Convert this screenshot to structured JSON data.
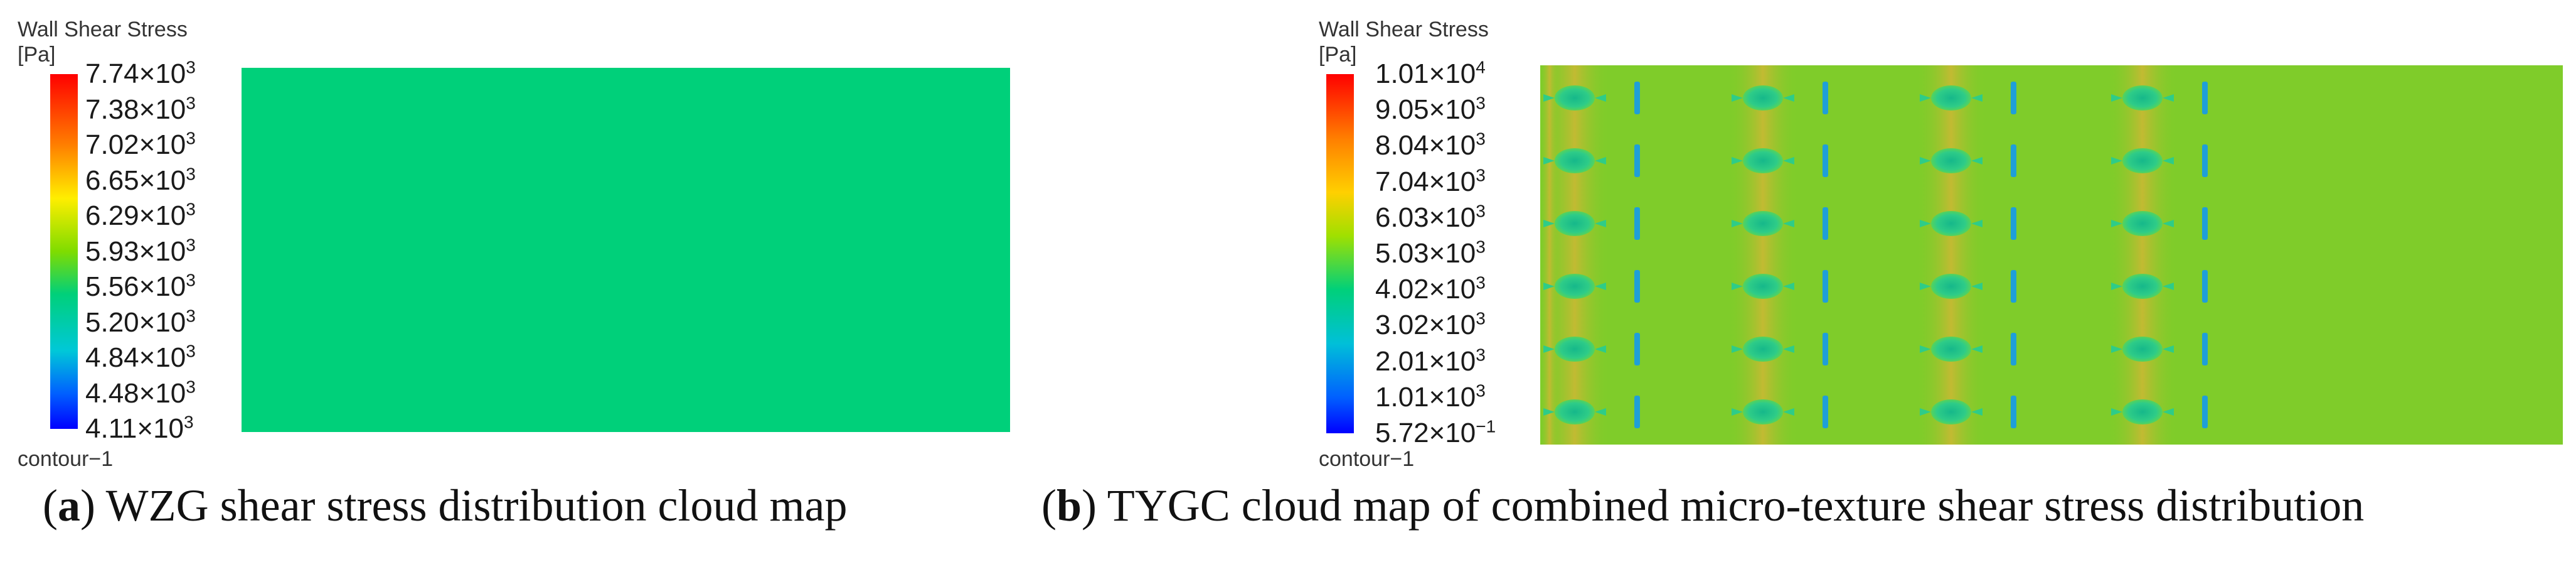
{
  "panel_a": {
    "legend_title": "Wall Shear Stress",
    "legend_unit": "[Pa]",
    "ticks": [
      {
        "mant": "7.74",
        "exp": "3"
      },
      {
        "mant": "7.38",
        "exp": "3"
      },
      {
        "mant": "7.02",
        "exp": "3"
      },
      {
        "mant": "6.65",
        "exp": "3"
      },
      {
        "mant": "6.29",
        "exp": "3"
      },
      {
        "mant": "5.93",
        "exp": "3"
      },
      {
        "mant": "5.56",
        "exp": "3"
      },
      {
        "mant": "5.20",
        "exp": "3"
      },
      {
        "mant": "4.84",
        "exp": "3"
      },
      {
        "mant": "4.48",
        "exp": "3"
      },
      {
        "mant": "4.11",
        "exp": "3"
      }
    ],
    "footer": "contour−1",
    "caption_letter": "a",
    "caption_text": " WZG shear stress distribution cloud map",
    "field_color": "#00d07a"
  },
  "panel_b": {
    "legend_title": "Wall Shear Stress",
    "legend_unit": "[Pa]",
    "ticks": [
      {
        "mant": "1.01",
        "exp": "4"
      },
      {
        "mant": "9.05",
        "exp": "3"
      },
      {
        "mant": "8.04",
        "exp": "3"
      },
      {
        "mant": "7.04",
        "exp": "3"
      },
      {
        "mant": "6.03",
        "exp": "3"
      },
      {
        "mant": "5.03",
        "exp": "3"
      },
      {
        "mant": "4.02",
        "exp": "3"
      },
      {
        "mant": "3.02",
        "exp": "3"
      },
      {
        "mant": "2.01",
        "exp": "3"
      },
      {
        "mant": "1.01",
        "exp": "3"
      },
      {
        "mant": "5.72",
        "exp": "−1"
      }
    ],
    "footer": "contour−1",
    "caption_letter": "b",
    "caption_text": " TYGC cloud map of combined micro-texture shear stress distribution",
    "field_color": "#7fcc2a",
    "band_color": "#d7b535",
    "dimple_color": "#2ecc88",
    "groove_color": "#1f9fd8",
    "grid_rows": 6,
    "grid_cols": 4
  }
}
